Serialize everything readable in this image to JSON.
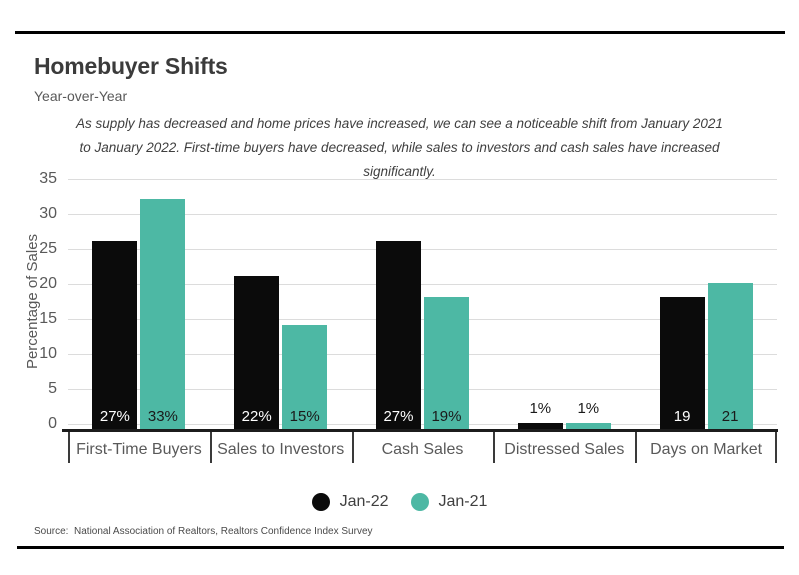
{
  "page": {
    "title": "Homebuyer Shifts",
    "subtitle": "Year-over-Year",
    "description_lines": [
      "As supply has decreased and home prices have increased, we can see a noticeable shift from January 2021",
      "to January 2022. First-time buyers have decreased, while sales to investors and cash sales have increased",
      "significantly."
    ],
    "source": "Source:  National Association of Realtors, Realtors Confidence Index Survey"
  },
  "colors": {
    "jan22_bar": "#0b0b0b",
    "jan21_bar": "#4db8a4",
    "gridline": "#dcdcdc",
    "axis": "#1c1c1c",
    "text_gray": "#595959",
    "label_on_dark": "#ffffff",
    "label_on_teal": "#1a1a1a"
  },
  "chart_data": {
    "type": "bar",
    "title": "Homebuyer Shifts",
    "subtitle": "Year-over-Year",
    "categories": [
      "First-Time Buyers",
      "Sales to Investors",
      "Cash Sales",
      "Distressed Sales",
      "Days on Market"
    ],
    "series": [
      {
        "name": "Jan-22",
        "color": "#0b0b0b",
        "values": [
          27,
          22,
          27,
          1,
          19
        ],
        "labels": [
          "27%",
          "22%",
          "27%",
          "1%",
          "19"
        ]
      },
      {
        "name": "Jan-21",
        "color": "#4db8a4",
        "values": [
          33,
          15,
          19,
          1,
          21
        ],
        "labels": [
          "33%",
          "15%",
          "19%",
          "1%",
          "21"
        ]
      }
    ],
    "ylabel": "Percentage of Sales",
    "xlabel": "",
    "yticks": [
      0,
      5,
      10,
      15,
      20,
      25,
      30,
      35
    ],
    "ylim": [
      0,
      35
    ],
    "grid": true,
    "legend_position": "bottom"
  }
}
